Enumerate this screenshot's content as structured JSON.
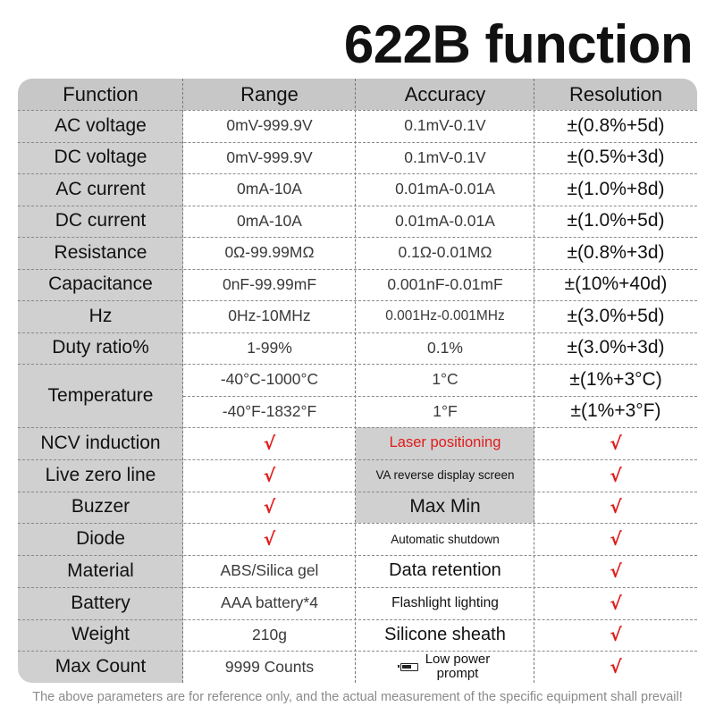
{
  "title": "622B function",
  "headers": [
    "Function",
    "Range",
    "Accuracy",
    "Resolution"
  ],
  "rows": [
    {
      "function": "AC voltage",
      "range": "0mV-999.9V",
      "accuracy": "0.1mV-0.1V",
      "resolution": "±(0.8%+5d)"
    },
    {
      "function": "DC voltage",
      "range": "0mV-999.9V",
      "accuracy": "0.1mV-0.1V",
      "resolution": "±(0.5%+3d)"
    },
    {
      "function": "AC current",
      "range": "0mA-10A",
      "accuracy": "0.01mA-0.01A",
      "resolution": "±(1.0%+8d)"
    },
    {
      "function": "DC current",
      "range": "0mA-10A",
      "accuracy": "0.01mA-0.01A",
      "resolution": "±(1.0%+5d)"
    },
    {
      "function": "Resistance",
      "range": "0Ω-99.99MΩ",
      "accuracy": "0.1Ω-0.01MΩ",
      "resolution": "±(0.8%+3d)"
    },
    {
      "function": "Capacitance",
      "range": "0nF-99.99mF",
      "accuracy": "0.001nF-0.01mF",
      "resolution": "±(10%+40d)"
    },
    {
      "function": "Hz",
      "range": "0Hz-10MHz",
      "accuracy": "0.001Hz-0.001MHz",
      "resolution": "±(3.0%+5d)"
    },
    {
      "function": "Duty ratio%",
      "range": "1-99%",
      "accuracy": "0.1%",
      "resolution": "±(3.0%+3d)"
    }
  ],
  "temperature": {
    "label": "Temperature",
    "rows": [
      {
        "range": "-40°C-1000°C",
        "accuracy": "1°C",
        "resolution": "±(1%+3°C)"
      },
      {
        "range": "-40°F-1832°F",
        "accuracy": "1°F",
        "resolution": "±(1%+3°F)"
      }
    ]
  },
  "features": [
    {
      "function": "NCV induction",
      "range": "√",
      "feature": "Laser positioning",
      "check": "√"
    },
    {
      "function": "Live zero line",
      "range": "√",
      "feature": "VA reverse display screen",
      "check": "√"
    },
    {
      "function": "Buzzer",
      "range": "√",
      "feature": "Max Min",
      "check": "√"
    },
    {
      "function": "Diode",
      "range": "√",
      "feature": "Automatic shutdown",
      "check": "√"
    },
    {
      "function": "Material",
      "range": "ABS/Silica gel",
      "feature": "Data retention",
      "check": "√"
    },
    {
      "function": "Battery",
      "range": "AAA battery*4",
      "feature": "Flashlight lighting",
      "check": "√"
    },
    {
      "function": "Weight",
      "range": "210g",
      "feature": "Silicone sheath",
      "check": "√"
    },
    {
      "function": "Max Count",
      "range": "9999 Counts",
      "feature": "Low power prompt",
      "feature_lines": [
        "Low power",
        "prompt"
      ],
      "check": "√"
    }
  ],
  "colors": {
    "accent_red": "#e21b1b",
    "label_gray": "#d0d0d0",
    "header_gray": "#c7c7c7"
  },
  "icons": {
    "low_power": "battery-low-icon"
  },
  "footnote": "The above parameters are for reference only, and the actual measurement of the specific equipment shall prevail!"
}
